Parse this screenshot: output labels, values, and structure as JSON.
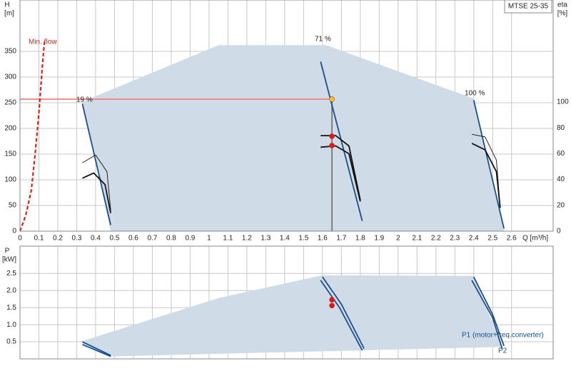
{
  "chart_data": [
    {
      "type": "line",
      "title": "MTSE 25-35",
      "ylabel": "H",
      "yunit": "[m]",
      "y2label": "eta",
      "y2unit": "[%]",
      "xlabel": "Q [m³/h]",
      "xlim": [
        0,
        2.82
      ],
      "ylim": [
        0,
        450
      ],
      "y2lim": [
        0,
        179
      ],
      "grid": true,
      "xticks": [
        0,
        0.1,
        0.2,
        0.3,
        0.4,
        0.5,
        0.6,
        0.7,
        0.8,
        0.9,
        1,
        1.1,
        1.2,
        1.3,
        1.4,
        1.5,
        1.6,
        1.7,
        1.8,
        1.9,
        2,
        2.1,
        2.2,
        2.3,
        2.4,
        2.5,
        2.6
      ],
      "yticks": [
        0,
        50,
        100,
        150,
        200,
        250,
        300,
        350
      ],
      "y2ticks": [
        0,
        20,
        40,
        60,
        80,
        100
      ],
      "annotations": [
        {
          "text": "Min. flow",
          "color": "#e0201c"
        },
        {
          "text": "19 %",
          "color": "#222222"
        },
        {
          "text": "71 %",
          "color": "#222222"
        },
        {
          "text": "100 %",
          "color": "#222222"
        }
      ],
      "series": [
        {
          "kind": "area",
          "color": "#cfdbe6",
          "x": [
            0.33,
            1.05,
            1.62,
            2.4,
            2.56,
            0.48,
            0.33
          ],
          "values": [
            252,
            362,
            362,
            258,
            0,
            0,
            252
          ]
        },
        {
          "kind": "line",
          "color": "#f08080",
          "x": [
            0,
            1.65
          ],
          "values": [
            257,
            257
          ]
        },
        {
          "kind": "line",
          "color": "#777777",
          "x": [
            1.65,
            1.65
          ],
          "values": [
            257,
            0
          ]
        },
        {
          "kind": "dashed",
          "color": "#e0201c",
          "x": [
            0,
            0.03,
            0.06,
            0.08,
            0.1,
            0.12,
            0.13
          ],
          "values": [
            0,
            30,
            80,
            150,
            230,
            330,
            370
          ]
        },
        {
          "kind": "line",
          "color": "#1a4f8c",
          "x": [
            0.33,
            0.48
          ],
          "values": [
            248,
            12
          ]
        },
        {
          "kind": "line",
          "color": "#1a4f8c",
          "x": [
            1.59,
            1.81
          ],
          "values": [
            330,
            20
          ]
        },
        {
          "kind": "line",
          "color": "#1a4f8c",
          "x": [
            2.4,
            2.56
          ],
          "values": [
            255,
            5
          ]
        },
        {
          "kind": "thin",
          "color": "#111111",
          "axis": "y2",
          "x": [
            0.33,
            0.4,
            0.46,
            0.48
          ],
          "values": [
            53,
            59,
            46,
            16
          ]
        },
        {
          "kind": "line",
          "color": "#111111",
          "axis": "y2",
          "x": [
            0.33,
            0.39,
            0.45,
            0.48
          ],
          "values": [
            41,
            45,
            36,
            14
          ]
        },
        {
          "kind": "line",
          "color": "#111111",
          "axis": "y2",
          "x": [
            1.59,
            1.67,
            1.74,
            1.8
          ],
          "values": [
            74,
            74,
            66,
            24
          ]
        },
        {
          "kind": "line",
          "color": "#111111",
          "axis": "y2",
          "x": [
            1.59,
            1.67,
            1.74,
            1.8
          ],
          "values": [
            65,
            66,
            60,
            23
          ]
        },
        {
          "kind": "thin",
          "color": "#111111",
          "axis": "y2",
          "x": [
            2.39,
            2.46,
            2.52,
            2.54
          ],
          "values": [
            75,
            73,
            55,
            18
          ]
        },
        {
          "kind": "line",
          "color": "#111111",
          "axis": "y2",
          "x": [
            2.39,
            2.46,
            2.52,
            2.54
          ],
          "values": [
            68,
            63,
            46,
            18
          ]
        },
        {
          "kind": "marker",
          "color": "#f5c518",
          "x": [
            1.65
          ],
          "values": [
            257
          ]
        },
        {
          "kind": "marker",
          "color": "#ee1111",
          "axis": "y2",
          "x": [
            1.65,
            1.65
          ],
          "values": [
            73.5,
            66.3
          ]
        }
      ]
    },
    {
      "type": "line",
      "ylabel": "P",
      "yunit": "[kW]",
      "xlim": [
        0,
        2.82
      ],
      "ylim": [
        0,
        3.3
      ],
      "grid": true,
      "xticks": [
        0,
        0.1,
        0.2,
        0.3,
        0.4,
        0.5,
        0.6,
        0.7,
        0.8,
        0.9,
        1,
        1.1,
        1.2,
        1.3,
        1.4,
        1.5,
        1.6,
        1.7,
        1.8,
        1.9,
        2,
        2.1,
        2.2,
        2.3,
        2.4,
        2.5,
        2.6
      ],
      "yticks": [
        {
          "value": 0.5,
          "label": "0.5"
        },
        {
          "value": 1,
          "label": "1.0"
        },
        {
          "value": 1.5,
          "label": "1.5"
        },
        {
          "value": 2,
          "label": "2.0"
        },
        {
          "value": 2.5,
          "label": "2.5"
        }
      ],
      "annotations": [
        {
          "text": "P1 (motor+freq.converter)",
          "color": "#1a4f8c"
        },
        {
          "text": "P2",
          "color": "#1a4f8c"
        }
      ],
      "series": [
        {
          "kind": "area",
          "color": "#cfdbe6",
          "x": [
            0.33,
            1.05,
            1.6,
            2.4,
            2.55,
            0.48,
            0.33
          ],
          "values": [
            0.52,
            1.78,
            2.45,
            2.43,
            0.35,
            0.07,
            0.45
          ]
        },
        {
          "kind": "line",
          "color": "#1a4f8c",
          "x": [
            0.33,
            0.48
          ],
          "values": [
            0.5,
            0.1
          ]
        },
        {
          "kind": "line",
          "color": "#1a4f8c",
          "x": [
            0.33,
            0.48
          ],
          "values": [
            0.42,
            0.07
          ]
        },
        {
          "kind": "line",
          "color": "#1a4f8c",
          "x": [
            1.6,
            1.7,
            1.82
          ],
          "values": [
            2.4,
            1.6,
            0.3
          ]
        },
        {
          "kind": "line",
          "color": "#1a4f8c",
          "x": [
            1.59,
            1.69,
            1.81
          ],
          "values": [
            2.3,
            1.5,
            0.25
          ]
        },
        {
          "kind": "line",
          "color": "#1a4f8c",
          "x": [
            2.4,
            2.5,
            2.56
          ],
          "values": [
            2.4,
            1.3,
            0.38
          ]
        },
        {
          "kind": "line",
          "color": "#1a4f8c",
          "x": [
            2.39,
            2.5,
            2.55
          ],
          "values": [
            2.3,
            1.2,
            0.3
          ]
        },
        {
          "kind": "marker",
          "color": "#ee1111",
          "x": [
            1.65,
            1.65
          ],
          "values": [
            1.73,
            1.56
          ]
        }
      ]
    }
  ]
}
